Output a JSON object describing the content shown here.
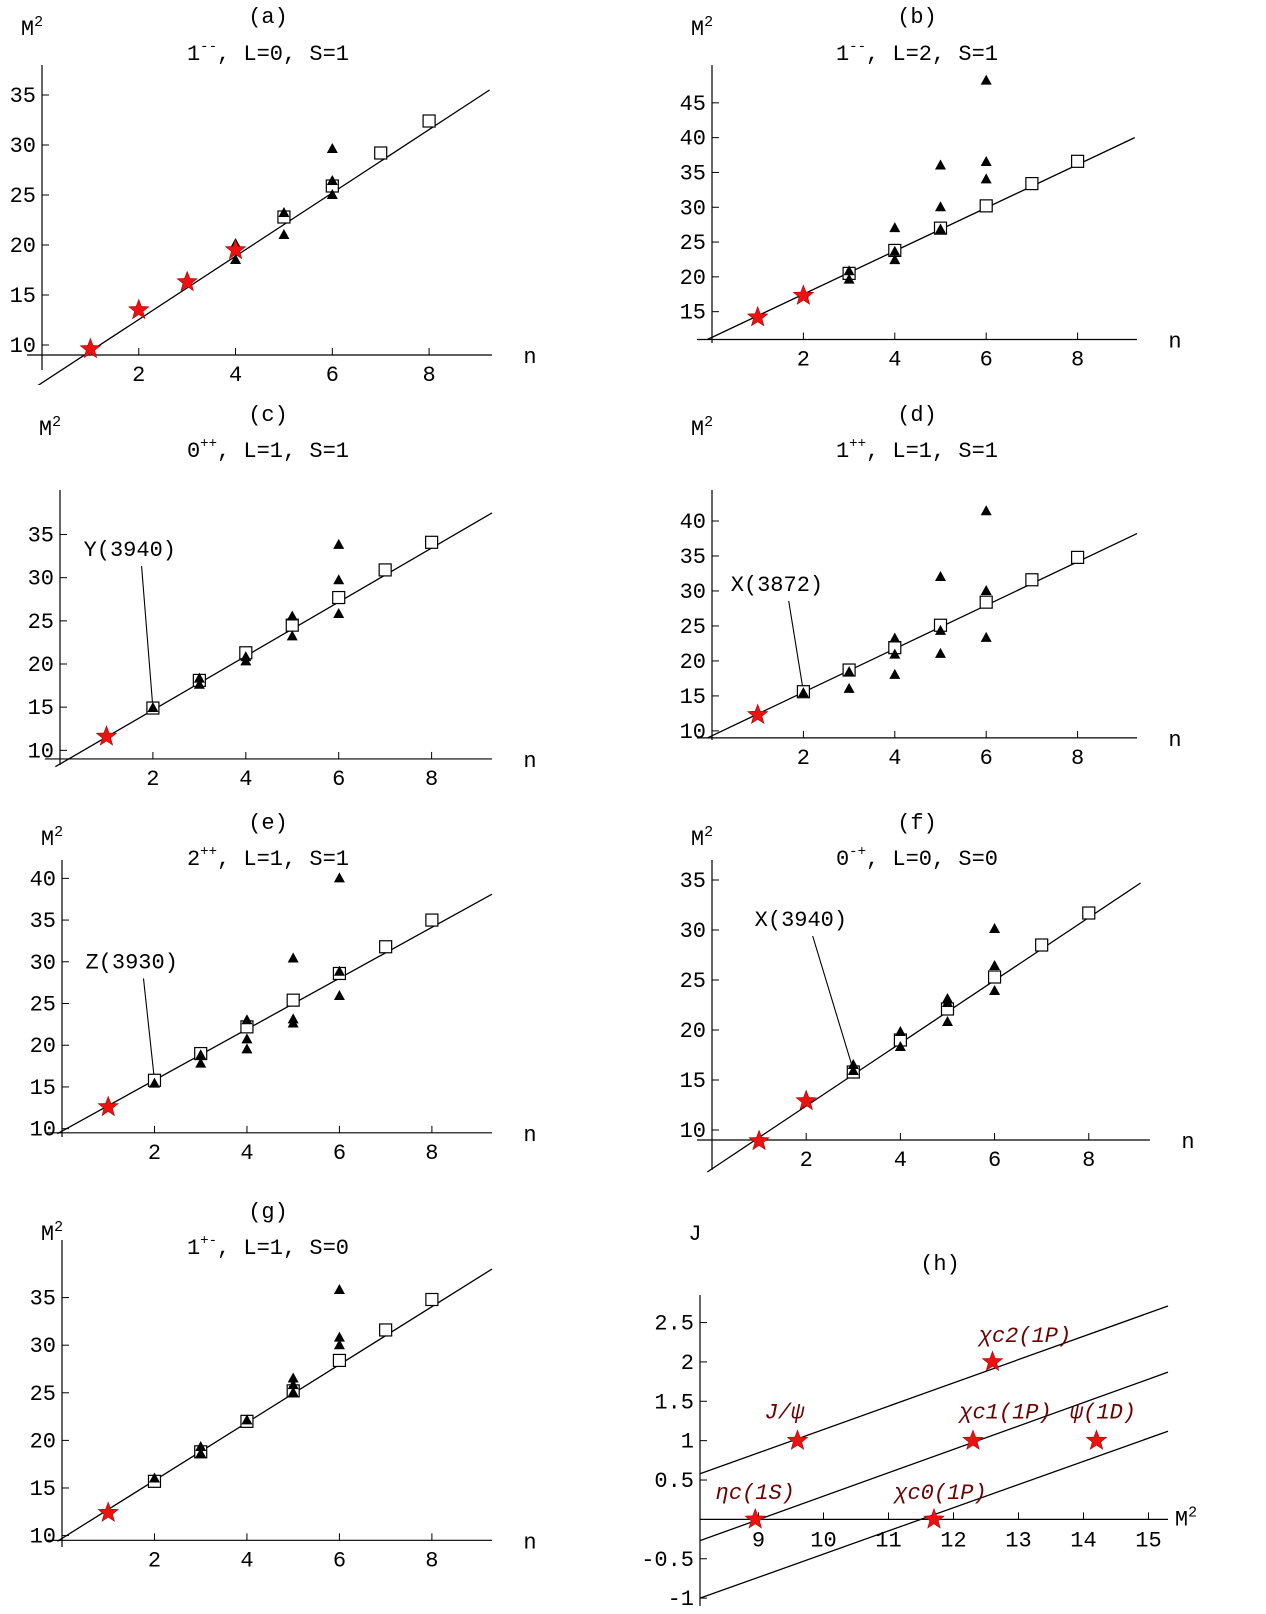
{
  "colors": {
    "star": "#ee1111",
    "star_stroke": "#aa0000",
    "triangle": "#000000",
    "square_stroke": "#000000",
    "axis": "#000000",
    "label_h": "#6b0000"
  },
  "chart_data": [
    {
      "type": "scatter",
      "panel": "(a)",
      "title": "1⁻⁻, L=0, S=1",
      "title_main": "1",
      "title_sup": "--",
      "title_rest": ", L=0, S=1",
      "xlabel": "n",
      "ylabel": "M",
      "ylabel_sup": "2",
      "xlim": [
        0,
        9.3
      ],
      "ylim": [
        7.5,
        37
      ],
      "x_axis_y": 9,
      "xticks": [
        2,
        4,
        6,
        8
      ],
      "yticks": [
        10,
        15,
        20,
        25,
        30,
        35
      ],
      "fit_line": {
        "x": [
          -0.1,
          9.25
        ],
        "y": [
          5.9,
          35.5
        ]
      },
      "stars": {
        "x": [
          1,
          2,
          3,
          4
        ],
        "y": [
          9.6,
          13.5,
          16.3,
          19.5
        ]
      },
      "squares": {
        "x": [
          5,
          6,
          7,
          8
        ],
        "y": [
          22.8,
          25.9,
          29.2,
          32.4
        ]
      },
      "triangles": {
        "x": [
          3,
          4,
          4,
          5,
          5,
          6,
          6,
          6
        ],
        "y": [
          16.6,
          20.1,
          18.5,
          23.2,
          21.0,
          29.6,
          26.4,
          25.0
        ]
      }
    },
    {
      "type": "scatter",
      "panel": "(b)",
      "title": "1⁻⁻, L=2, S=1",
      "title_main": "1",
      "title_sup": "--",
      "title_rest": ", L=2, S=1",
      "xlabel": "n",
      "ylabel": "M",
      "ylabel_sup": "2",
      "xlim": [
        0,
        9.3
      ],
      "ylim": [
        10.5,
        49
      ],
      "x_axis_y": 11.0,
      "xticks": [
        2,
        4,
        6,
        8
      ],
      "yticks": [
        15,
        20,
        25,
        30,
        35,
        40,
        45
      ],
      "fit_line": {
        "x": [
          -0.1,
          9.25
        ],
        "y": [
          11.0,
          40.0
        ]
      },
      "stars": {
        "x": [
          1,
          2
        ],
        "y": [
          14.2,
          17.3
        ]
      },
      "squares": {
        "x": [
          3,
          4,
          5,
          6,
          7,
          8
        ],
        "y": [
          20.5,
          23.8,
          27.0,
          30.2,
          33.4,
          36.6
        ]
      },
      "triangles": {
        "x": [
          2,
          3,
          3,
          4,
          4,
          4,
          5,
          5,
          5,
          6,
          6,
          6
        ],
        "y": [
          17.6,
          20.8,
          19.6,
          27.0,
          23.6,
          22.4,
          36.0,
          30.0,
          26.8,
          48.2,
          36.5,
          34.0
        ]
      }
    },
    {
      "type": "scatter",
      "panel": "(c)",
      "title": "0⁺⁺, L=1, S=1",
      "title_main": "0",
      "title_sup": "++",
      "title_rest": ", L=1, S=1",
      "xlabel": "n",
      "ylabel": "M",
      "ylabel_sup": "2",
      "xlim": [
        0,
        9.3
      ],
      "ylim": [
        8.3,
        39
      ],
      "x_axis_y": 9.0,
      "xticks": [
        2,
        4,
        6,
        8
      ],
      "yticks": [
        10,
        15,
        20,
        25,
        30,
        35
      ],
      "fit_line": {
        "x": [
          -0.1,
          9.3
        ],
        "y": [
          8.1,
          37.5
        ]
      },
      "stars": {
        "x": [
          1
        ],
        "y": [
          11.6
        ]
      },
      "squares": {
        "x": [
          2,
          3,
          4,
          5,
          6,
          7,
          8
        ],
        "y": [
          14.9,
          18.1,
          21.3,
          24.5,
          27.7,
          30.9,
          34.1
        ]
      },
      "triangles": {
        "x": [
          2,
          3,
          3,
          4,
          4,
          5,
          5,
          6,
          6,
          6
        ],
        "y": [
          14.9,
          18.3,
          17.6,
          20.8,
          20.3,
          25.5,
          23.2,
          33.8,
          29.7,
          25.8
        ]
      },
      "annotation": {
        "text": "Y(3940)",
        "x": 2,
        "y": 14.9,
        "label_x": 0.4,
        "label_y": 32.5
      }
    },
    {
      "type": "scatter",
      "panel": "(d)",
      "title": "1⁺⁺, L=1, S=1",
      "title_main": "1",
      "title_sup": "++",
      "title_rest": ", L=1, S=1",
      "xlabel": "n",
      "ylabel": "M",
      "ylabel_sup": "2",
      "xlim": [
        0,
        9.3
      ],
      "ylim": [
        8.7,
        43
      ],
      "x_axis_y": 9.0,
      "xticks": [
        2,
        4,
        6,
        8
      ],
      "yticks": [
        10,
        15,
        20,
        25,
        30,
        35,
        40
      ],
      "fit_line": {
        "x": [
          -0.1,
          9.3
        ],
        "y": [
          9.0,
          38.2
        ]
      },
      "stars": {
        "x": [
          1
        ],
        "y": [
          12.3
        ]
      },
      "squares": {
        "x": [
          2,
          3,
          4,
          5,
          6,
          7,
          8
        ],
        "y": [
          15.6,
          18.7,
          21.9,
          25.1,
          28.4,
          31.6,
          34.8
        ]
      },
      "triangles": {
        "x": [
          2,
          3,
          3,
          4,
          4,
          4,
          5,
          5,
          5,
          6,
          6,
          6
        ],
        "y": [
          15.4,
          18.4,
          16.0,
          23.2,
          20.9,
          18.0,
          32.0,
          24.3,
          21.0,
          41.4,
          30.0,
          23.3
        ]
      },
      "annotation": {
        "text": "X(3872)",
        "x": 2,
        "y": 15.6,
        "label_x": 0.3,
        "label_y": 30.0
      }
    },
    {
      "type": "scatter",
      "panel": "(e)",
      "title": "2⁺⁺, L=1, S=1",
      "title_main": "2",
      "title_sup": "++",
      "title_rest": ", L=1, S=1",
      "xlabel": "n",
      "ylabel": "M",
      "ylabel_sup": "2",
      "xlim": [
        0,
        9.3
      ],
      "ylim": [
        9.0,
        41
      ],
      "x_axis_y": 9.5,
      "xticks": [
        2,
        4,
        6,
        8
      ],
      "yticks": [
        10,
        15,
        20,
        25,
        30,
        35,
        40
      ],
      "fit_line": {
        "x": [
          -0.1,
          9.3
        ],
        "y": [
          9.4,
          38.1
        ]
      },
      "stars": {
        "x": [
          1
        ],
        "y": [
          12.6
        ]
      },
      "squares": {
        "x": [
          2,
          3,
          4,
          5,
          6,
          7,
          8
        ],
        "y": [
          15.8,
          19.0,
          22.2,
          25.4,
          28.6,
          31.8,
          35.0
        ]
      },
      "triangles": {
        "x": [
          2,
          3,
          3,
          4,
          4,
          4,
          5,
          5,
          5,
          6,
          6,
          6
        ],
        "y": [
          15.4,
          18.8,
          17.8,
          23.0,
          20.7,
          19.5,
          30.4,
          23.1,
          22.6,
          40.0,
          28.8,
          25.9
        ]
      },
      "annotation": {
        "text": "Z(3930)",
        "x": 2,
        "y": 15.8,
        "label_x": 0.4,
        "label_y": 29.2
      }
    },
    {
      "type": "scatter",
      "panel": "(f)",
      "title": "0⁻⁺, L=0, S=0",
      "title_main": "0",
      "title_sup": "-+",
      "title_rest": ", L=0, S=0",
      "xlabel": "n",
      "ylabel": "M",
      "ylabel_sup": "2",
      "xlim": [
        0,
        9.3
      ],
      "ylim": [
        6.0,
        36
      ],
      "x_axis_y": 9.0,
      "xticks": [
        2,
        4,
        6,
        8
      ],
      "yticks": [
        10,
        15,
        20,
        25,
        30,
        35
      ],
      "fit_line": {
        "x": [
          -0.1,
          9.1
        ],
        "y": [
          5.8,
          34.7
        ]
      },
      "stars": {
        "x": [
          1,
          2
        ],
        "y": [
          8.9,
          12.9
        ]
      },
      "squares": {
        "x": [
          3,
          4,
          5,
          6,
          7,
          8
        ],
        "y": [
          15.8,
          19.0,
          22.1,
          25.3,
          28.5,
          31.7
        ]
      },
      "triangles": {
        "x": [
          3,
          3,
          4,
          4,
          5,
          5,
          5,
          6,
          6,
          6
        ],
        "y": [
          16.5,
          15.9,
          19.8,
          18.3,
          23.1,
          22.7,
          20.8,
          30.1,
          26.4,
          23.9
        ]
      },
      "annotation": {
        "text": "X(3940)",
        "x": 3,
        "y": 16.0,
        "label_x": 0.8,
        "label_y": 30.4
      }
    },
    {
      "type": "scatter",
      "panel": "(g)",
      "title": "1⁺⁻, L=1, S=0",
      "title_main": "1",
      "title_sup": "+-",
      "title_rest": ", L=1, S=0",
      "xlabel": "n",
      "ylabel": "M",
      "ylabel_sup": "2",
      "xlim": [
        0,
        9.3
      ],
      "ylim": [
        8.8,
        40
      ],
      "x_axis_y": 9.5,
      "xticks": [
        2,
        4,
        6,
        8
      ],
      "yticks": [
        10,
        15,
        20,
        25,
        30,
        35
      ],
      "fit_line": {
        "x": [
          -0.1,
          9.3
        ],
        "y": [
          9.4,
          38.0
        ]
      },
      "stars": {
        "x": [
          1
        ],
        "y": [
          12.4
        ]
      },
      "squares": {
        "x": [
          2,
          3,
          4,
          5,
          6,
          7,
          8
        ],
        "y": [
          15.7,
          18.8,
          22.0,
          25.2,
          28.4,
          31.6,
          34.8
        ]
      },
      "triangles": {
        "x": [
          2,
          3,
          3,
          4,
          5,
          5,
          5,
          6,
          6,
          6
        ],
        "y": [
          16.0,
          19.3,
          18.6,
          22.1,
          26.5,
          25.8,
          25.0,
          35.8,
          30.8,
          30.0
        ]
      }
    },
    {
      "type": "line",
      "panel": "(h)",
      "title": "",
      "xlabel": "M",
      "xlabel_sup": "2",
      "ylabel": "J",
      "xlim": [
        8.1,
        15.3
      ],
      "ylim": [
        -1.1,
        2.85
      ],
      "y_axis_x": 8.1,
      "xticks": [
        9,
        10,
        11,
        12,
        13,
        14,
        15
      ],
      "yticks": [
        -1,
        -0.5,
        0.5,
        1,
        1.5,
        2,
        2.5
      ],
      "ytick_labels": [
        "-1",
        "-0.5",
        "0.5",
        "1",
        "1.5",
        "2",
        "2.5"
      ],
      "series": [
        {
          "x": [
            8.1,
            15.3
          ],
          "y": [
            0.58,
            2.71
          ]
        },
        {
          "x": [
            8.1,
            15.3
          ],
          "y": [
            -0.27,
            1.87
          ]
        },
        {
          "x": [
            8.1,
            15.3
          ],
          "y": [
            -1.0,
            1.12
          ]
        }
      ],
      "stars": {
        "x": [
          8.95,
          9.6,
          11.7,
          12.3,
          12.6,
          14.2
        ],
        "y": [
          0.0,
          1.0,
          0.0,
          1.0,
          2.0,
          1.0
        ]
      },
      "labels": [
        {
          "text": "J/ψ",
          "x": 9.4,
          "y": 1.28
        },
        {
          "text": "χc2(1P)",
          "x": 13.1,
          "y": 2.25
        },
        {
          "text": "χc1(1P)",
          "x": 12.8,
          "y": 1.28
        },
        {
          "text": "ψ(1D)",
          "x": 14.3,
          "y": 1.28
        },
        {
          "text": "ηc(1S)",
          "x": 8.95,
          "y": 0.26
        },
        {
          "text": "χc0(1P)",
          "x": 11.8,
          "y": 0.26
        }
      ]
    }
  ]
}
